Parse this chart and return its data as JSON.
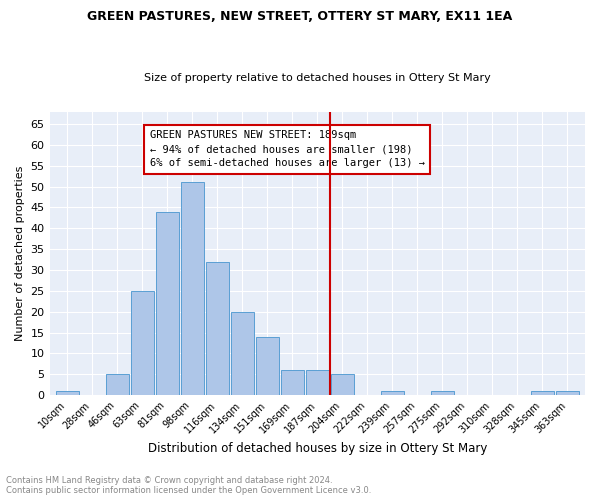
{
  "title": "GREEN PASTURES, NEW STREET, OTTERY ST MARY, EX11 1EA",
  "subtitle": "Size of property relative to detached houses in Ottery St Mary",
  "xlabel": "Distribution of detached houses by size in Ottery St Mary",
  "ylabel": "Number of detached properties",
  "footer_line1": "Contains HM Land Registry data © Crown copyright and database right 2024.",
  "footer_line2": "Contains public sector information licensed under the Open Government Licence v3.0.",
  "bin_labels": [
    "10sqm",
    "28sqm",
    "46sqm",
    "63sqm",
    "81sqm",
    "98sqm",
    "116sqm",
    "134sqm",
    "151sqm",
    "169sqm",
    "187sqm",
    "204sqm",
    "222sqm",
    "239sqm",
    "257sqm",
    "275sqm",
    "292sqm",
    "310sqm",
    "328sqm",
    "345sqm",
    "363sqm"
  ],
  "bar_values": [
    1,
    0,
    5,
    25,
    44,
    51,
    32,
    20,
    14,
    6,
    6,
    5,
    0,
    1,
    0,
    1,
    0,
    0,
    0,
    1,
    1
  ],
  "bar_color": "#aec6e8",
  "bar_edge_color": "#5a9fd4",
  "vline_x": 10.5,
  "vline_color": "#cc0000",
  "ylim": [
    0,
    68
  ],
  "yticks": [
    0,
    5,
    10,
    15,
    20,
    25,
    30,
    35,
    40,
    45,
    50,
    55,
    60,
    65
  ],
  "annotation_title": "GREEN PASTURES NEW STREET: 189sqm",
  "annotation_line2": "← 94% of detached houses are smaller (198)",
  "annotation_line3": "6% of semi-detached houses are larger (13) →",
  "annotation_box_color": "#cc0000",
  "background_color": "#e8eef8",
  "title_fontsize": 9,
  "subtitle_fontsize": 8
}
